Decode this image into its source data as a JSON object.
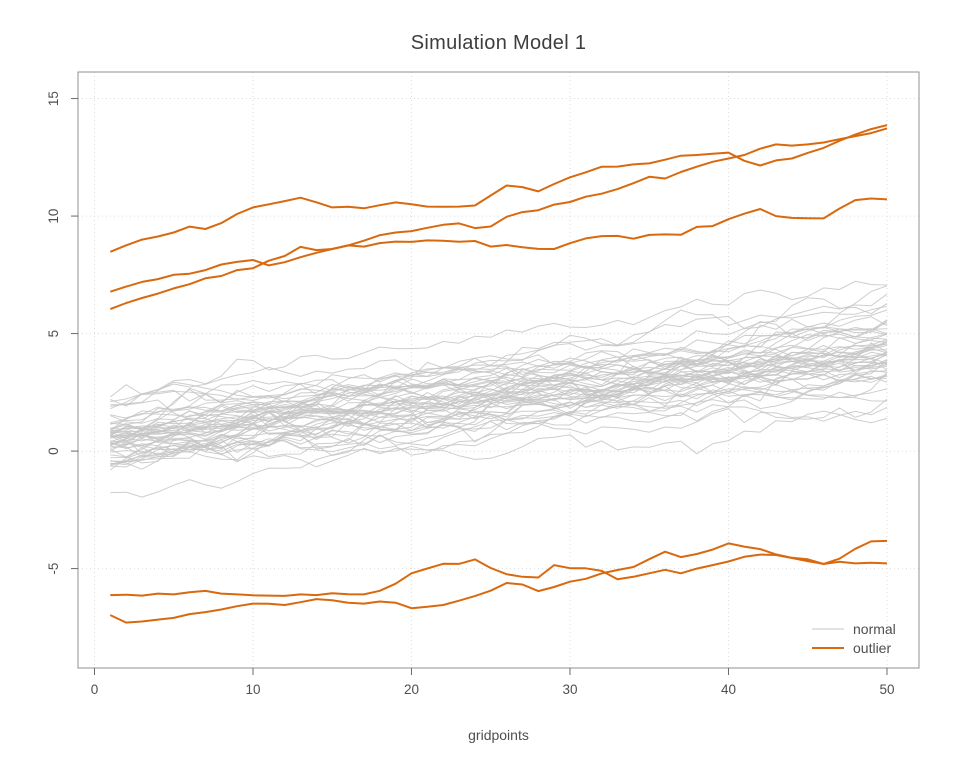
{
  "chart_data": {
    "type": "line",
    "title": "Simulation Model 1",
    "xlabel": "gridpoints",
    "ylabel": "",
    "n_gridpoints": 50,
    "x_ticks": [
      0,
      10,
      20,
      30,
      40,
      50
    ],
    "y_ticks": [
      -5,
      0,
      5,
      10,
      15
    ],
    "xlim": [
      -1.04,
      52.02
    ],
    "ylim": [
      -9.23,
      16.13
    ],
    "grid": "dotted gridlines at every axis tick",
    "legend_position": "bottom-right inside plot",
    "legend": [
      {
        "label": "normal",
        "color": "#c6c6c6"
      },
      {
        "label": "outlier",
        "color": "#d9690e"
      }
    ],
    "colors": {
      "normal_line": "#c6c6c6",
      "outlier_line": "#d9690e",
      "grid_line": "#dcdcdc",
      "box": "#909090",
      "tick": "#6a6a6a",
      "tick_text": "#4f4f4f",
      "title_text": "#3e3e3e"
    },
    "normal_lines": {
      "count": 55,
      "seed": 1337,
      "start_mean": 0.55,
      "start_sd": 0.95,
      "rise_mean": 3.75,
      "rise_sd": 0.7,
      "noise_sd": 0.22,
      "noise_decay": 0.85,
      "description": "~55 thin light-gray random trajectories rising from roughly [-2.4, 2.7] at gridpoint 1 to roughly [2, 7] at gridpoint 50"
    },
    "outlier_series": [
      {
        "name": "outlier-1",
        "anchors": [
          [
            1,
            8.48
          ],
          [
            3,
            9.0
          ],
          [
            5,
            9.3
          ],
          [
            6,
            9.55
          ],
          [
            7,
            9.45
          ],
          [
            8,
            9.7
          ],
          [
            10,
            10.37
          ],
          [
            11,
            10.5
          ],
          [
            13,
            10.78
          ],
          [
            15,
            10.37
          ],
          [
            17,
            10.33
          ],
          [
            19,
            10.58
          ],
          [
            20,
            10.5
          ],
          [
            22,
            10.4
          ],
          [
            24,
            10.45
          ],
          [
            26,
            11.3
          ],
          [
            28,
            11.05
          ],
          [
            30,
            11.65
          ],
          [
            32,
            12.1
          ],
          [
            34,
            12.2
          ],
          [
            36,
            12.4
          ],
          [
            38,
            12.6
          ],
          [
            40,
            12.7
          ],
          [
            41,
            12.35
          ],
          [
            42,
            12.15
          ],
          [
            44,
            12.45
          ],
          [
            46,
            12.9
          ],
          [
            47.5,
            13.35
          ],
          [
            49,
            13.7
          ],
          [
            50,
            13.87
          ]
        ]
      },
      {
        "name": "outlier-2",
        "anchors": [
          [
            1,
            6.78
          ],
          [
            3,
            7.2
          ],
          [
            5,
            7.5
          ],
          [
            7,
            7.7
          ],
          [
            9,
            8.05
          ],
          [
            10,
            8.13
          ],
          [
            11,
            7.9
          ],
          [
            13,
            8.25
          ],
          [
            15,
            8.6
          ],
          [
            17,
            8.95
          ],
          [
            19,
            9.3
          ],
          [
            21,
            9.5
          ],
          [
            23,
            9.69
          ],
          [
            24.5,
            9.33
          ],
          [
            26,
            9.97
          ],
          [
            28,
            10.25
          ],
          [
            30,
            10.6
          ],
          [
            32,
            10.95
          ],
          [
            34,
            11.4
          ],
          [
            35,
            11.67
          ],
          [
            36,
            11.6
          ],
          [
            38,
            12.1
          ],
          [
            39,
            12.31
          ],
          [
            40,
            12.45
          ],
          [
            41,
            12.6
          ],
          [
            43,
            13.05
          ],
          [
            44,
            13.0
          ],
          [
            45,
            13.05
          ],
          [
            47.5,
            13.35
          ],
          [
            50,
            13.73
          ]
        ]
      },
      {
        "name": "outlier-3",
        "anchors": [
          [
            1,
            6.04
          ],
          [
            2,
            6.3
          ],
          [
            4,
            6.7
          ],
          [
            6,
            7.1
          ],
          [
            7,
            7.35
          ],
          [
            8,
            7.45
          ],
          [
            9,
            7.7
          ],
          [
            10,
            7.78
          ],
          [
            11,
            8.1
          ],
          [
            12,
            8.3
          ],
          [
            13,
            8.69
          ],
          [
            14,
            8.55
          ],
          [
            15,
            8.6
          ],
          [
            16,
            8.75
          ],
          [
            17,
            8.7
          ],
          [
            18,
            8.85
          ],
          [
            20,
            8.9
          ],
          [
            22,
            8.95
          ],
          [
            24,
            8.94
          ],
          [
            25,
            8.7
          ],
          [
            26,
            8.77
          ],
          [
            27.5,
            8.55
          ],
          [
            29,
            8.6
          ],
          [
            31,
            9.05
          ],
          [
            32.5,
            9.26
          ],
          [
            33.5,
            9.0
          ],
          [
            35,
            9.2
          ],
          [
            35.8,
            9.3
          ],
          [
            36.7,
            9.17
          ],
          [
            38,
            9.54
          ],
          [
            39.3,
            9.65
          ],
          [
            41,
            10.1
          ],
          [
            42,
            10.3
          ],
          [
            43,
            10.0
          ],
          [
            44.4,
            9.86
          ],
          [
            46,
            9.9
          ],
          [
            48,
            10.68
          ],
          [
            50,
            10.71
          ]
        ]
      },
      {
        "name": "outlier-4",
        "anchors": [
          [
            1,
            -6.13
          ],
          [
            3,
            -6.15
          ],
          [
            5,
            -6.1
          ],
          [
            7,
            -5.95
          ],
          [
            9,
            -6.1
          ],
          [
            11,
            -6.15
          ],
          [
            13,
            -6.1
          ],
          [
            15,
            -6.05
          ],
          [
            17,
            -6.1
          ],
          [
            18.5,
            -5.9
          ],
          [
            20,
            -5.2
          ],
          [
            20.5,
            -5.06
          ],
          [
            22.4,
            -4.71
          ],
          [
            23,
            -4.8
          ],
          [
            24,
            -4.61
          ],
          [
            25.5,
            -5.18
          ],
          [
            27,
            -5.35
          ],
          [
            28,
            -5.38
          ],
          [
            29,
            -4.85
          ],
          [
            30.5,
            -5.0
          ],
          [
            32,
            -5.1
          ],
          [
            33,
            -5.45
          ],
          [
            34,
            -5.35
          ],
          [
            35,
            -5.2
          ],
          [
            36,
            -5.05
          ],
          [
            37,
            -5.2
          ],
          [
            38,
            -5.0
          ],
          [
            40,
            -4.7
          ],
          [
            41,
            -4.5
          ],
          [
            42.5,
            -4.35
          ],
          [
            44,
            -4.55
          ],
          [
            45,
            -4.68
          ],
          [
            46.5,
            -4.77
          ],
          [
            47.5,
            -4.5
          ],
          [
            48.5,
            -3.85
          ],
          [
            50,
            -3.82
          ]
        ]
      },
      {
        "name": "outlier-5",
        "anchors": [
          [
            1,
            -6.98
          ],
          [
            2,
            -7.3
          ],
          [
            3,
            -7.25
          ],
          [
            5,
            -7.1
          ],
          [
            7,
            -6.85
          ],
          [
            9,
            -6.6
          ],
          [
            11,
            -6.5
          ],
          [
            12,
            -6.55
          ],
          [
            14,
            -6.3
          ],
          [
            16,
            -6.45
          ],
          [
            18,
            -6.4
          ],
          [
            20.5,
            -6.69
          ],
          [
            22.6,
            -6.41
          ],
          [
            24.3,
            -6.13
          ],
          [
            25.9,
            -5.63
          ],
          [
            26.8,
            -5.56
          ],
          [
            28.1,
            -6.06
          ],
          [
            30,
            -5.56
          ],
          [
            31.7,
            -5.28
          ],
          [
            33.7,
            -4.99
          ],
          [
            35,
            -4.6
          ],
          [
            36,
            -4.28
          ],
          [
            37.3,
            -4.6
          ],
          [
            38.5,
            -4.3
          ],
          [
            40,
            -3.93
          ],
          [
            42.3,
            -4.14
          ],
          [
            43.6,
            -4.5
          ],
          [
            45.2,
            -4.64
          ],
          [
            46.1,
            -4.77
          ],
          [
            48,
            -4.78
          ],
          [
            50,
            -4.78
          ]
        ]
      }
    ]
  }
}
